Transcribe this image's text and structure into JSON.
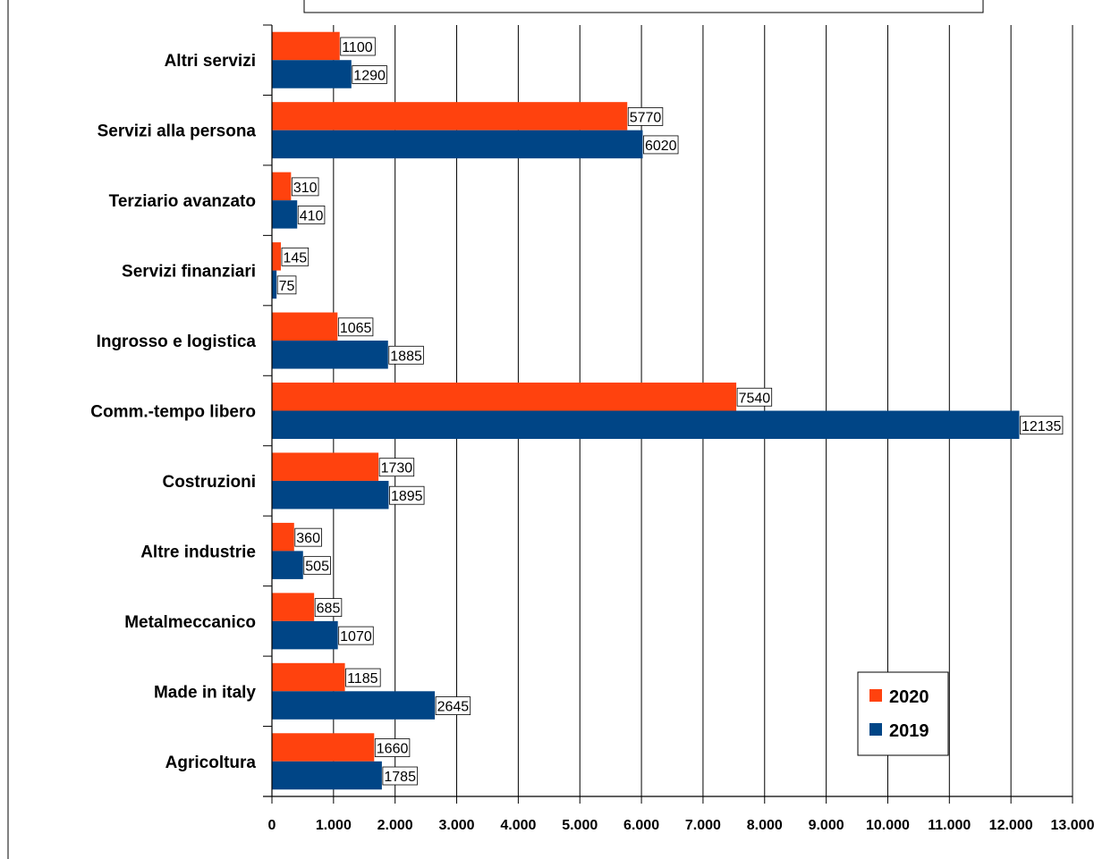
{
  "chart_data": {
    "type": "bar",
    "orientation": "horizontal",
    "title": "",
    "xlabel": "",
    "ylabel": "",
    "categories": [
      "Agricoltura",
      "Made in italy",
      "Metalmeccanico",
      "Altre industrie",
      "Costruzioni",
      "Comm.-tempo libero",
      "Ingrosso e logistica",
      "Servizi finanziari",
      "Terziario avanzato",
      "Servizi alla persona",
      "Altri servizi"
    ],
    "series": [
      {
        "name": "2020",
        "color": "#ff420e",
        "values": [
          1660,
          1185,
          685,
          360,
          1730,
          7540,
          1065,
          145,
          310,
          5770,
          1100
        ]
      },
      {
        "name": "2019",
        "color": "#004586",
        "values": [
          1785,
          2645,
          1070,
          505,
          1895,
          12135,
          1885,
          75,
          410,
          6020,
          1290
        ]
      }
    ],
    "xlim": [
      0,
      13000
    ],
    "xticks": [
      0,
      1000,
      2000,
      3000,
      4000,
      5000,
      6000,
      7000,
      8000,
      9000,
      10000,
      11000,
      12000,
      13000
    ],
    "xtick_labels": [
      "0",
      "1.000",
      "2.000",
      "3.000",
      "4.000",
      "5.000",
      "6.000",
      "7.000",
      "8.000",
      "9.000",
      "10.000",
      "11.000",
      "12.000",
      "13.000"
    ],
    "grid": "vertical",
    "legend": {
      "placement": "bottom-right",
      "entries": [
        "2020",
        "2019"
      ]
    },
    "data_labels": true
  }
}
